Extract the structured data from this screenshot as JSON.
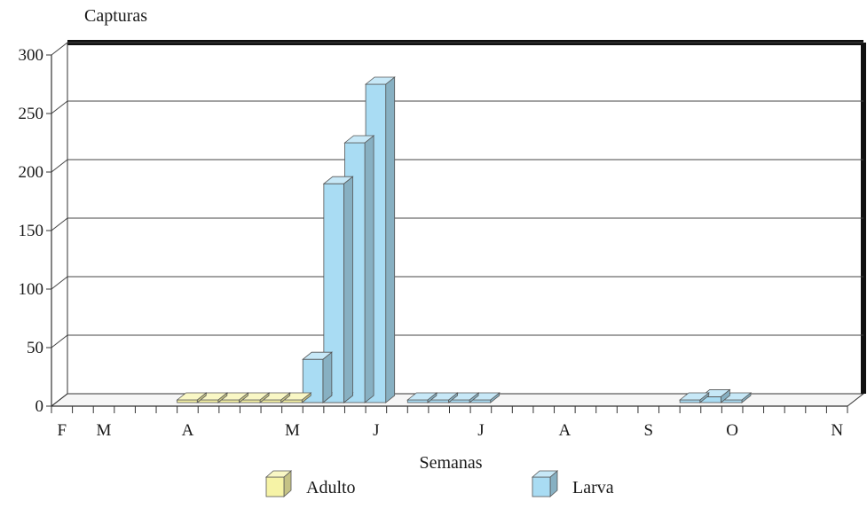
{
  "chart_data": {
    "type": "bar",
    "title": "",
    "ylabel": "Capturas",
    "xlabel": "Semanas",
    "ylim": [
      0,
      300
    ],
    "yticks": [
      0,
      50,
      100,
      150,
      200,
      250,
      300
    ],
    "grid": true,
    "legend_position": "bottom",
    "month_labels": [
      {
        "label": "F",
        "week": 0
      },
      {
        "label": "M",
        "week": 2
      },
      {
        "label": "A",
        "week": 6
      },
      {
        "label": "M",
        "week": 11
      },
      {
        "label": "J",
        "week": 15
      },
      {
        "label": "J",
        "week": 20
      },
      {
        "label": "A",
        "week": 24
      },
      {
        "label": "S",
        "week": 28
      },
      {
        "label": "O",
        "week": 32
      },
      {
        "label": "N",
        "week": 37
      }
    ],
    "series": [
      {
        "name": "Adulto",
        "color": "#f6f3a6",
        "points": [
          {
            "week": 6,
            "value": 1
          },
          {
            "week": 7,
            "value": 1
          },
          {
            "week": 8,
            "value": 1
          },
          {
            "week": 9,
            "value": 1
          },
          {
            "week": 10,
            "value": 1
          },
          {
            "week": 11,
            "value": 1
          },
          {
            "week": 12,
            "value": 2
          },
          {
            "week": 13,
            "value": 2
          }
        ]
      },
      {
        "name": "Larva",
        "color": "#a9dcf3",
        "points": [
          {
            "week": 12,
            "value": 40
          },
          {
            "week": 13,
            "value": 190
          },
          {
            "week": 14,
            "value": 225
          },
          {
            "week": 15,
            "value": 275
          },
          {
            "week": 17,
            "value": 4
          },
          {
            "week": 18,
            "value": 4
          },
          {
            "week": 19,
            "value": 4
          },
          {
            "week": 20,
            "value": 4
          },
          {
            "week": 30,
            "value": 4
          },
          {
            "week": 31,
            "value": 8
          },
          {
            "week": 32,
            "value": 4
          }
        ]
      }
    ]
  }
}
